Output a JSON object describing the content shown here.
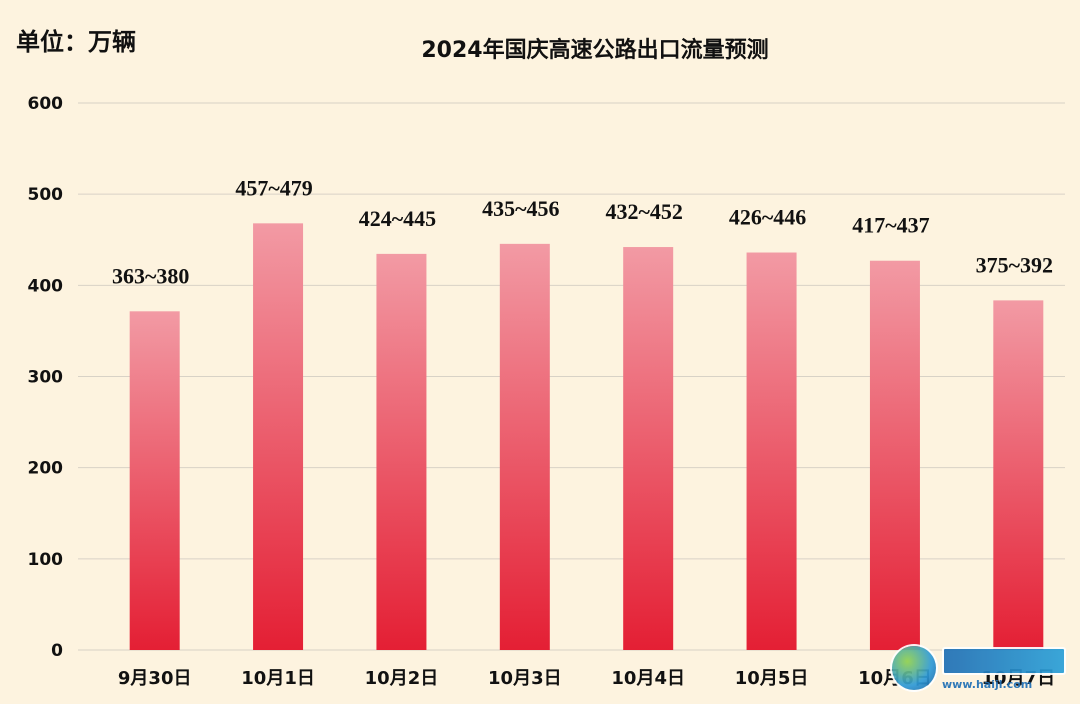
{
  "unit_label": "单位：万辆",
  "chart_data": {
    "type": "bar",
    "title": "2024年国庆高速公路出口流量预测",
    "unit": "单位：万辆",
    "categories": [
      "9月30日",
      "10月1日",
      "10月2日",
      "10月3日",
      "10月4日",
      "10月5日",
      "10月6日",
      "10月7日"
    ],
    "ranges": [
      [
        363,
        380
      ],
      [
        457,
        479
      ],
      [
        424,
        445
      ],
      [
        435,
        456
      ],
      [
        432,
        452
      ],
      [
        426,
        446
      ],
      [
        417,
        437
      ],
      [
        375,
        392
      ]
    ],
    "labels": [
      "363~380",
      "457~479",
      "424~445",
      "435~456",
      "432~452",
      "426~446",
      "417~437",
      "375~392"
    ],
    "values": [
      371.5,
      468,
      434.5,
      445.5,
      442,
      436,
      427,
      383.5
    ],
    "ylim": [
      0,
      600
    ],
    "yticks": [
      0,
      100,
      200,
      300,
      400,
      500,
      600
    ],
    "grid": true,
    "colors": {
      "bar_top": "#f29aa4",
      "bar_bottom": "#e41f34",
      "grid": "#d8d2c6",
      "background": "#fdf3df"
    }
  },
  "watermark": {
    "url": "www.haijl.com"
  }
}
